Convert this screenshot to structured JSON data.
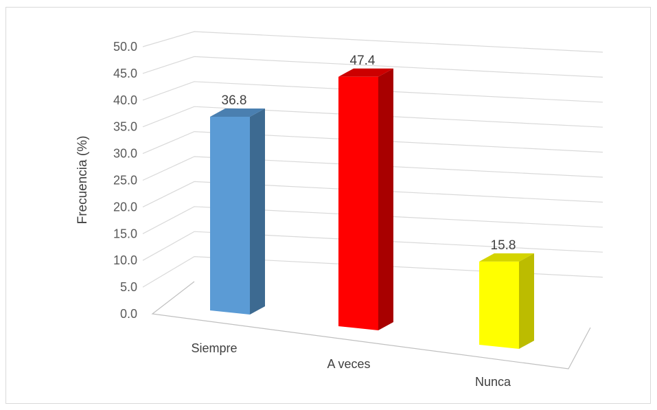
{
  "chart_data": {
    "type": "bar",
    "style": "3d-column",
    "categories": [
      "Siempre",
      "A veces",
      "Nunca"
    ],
    "series": [
      {
        "values": [
          36.8,
          47.4,
          15.8
        ]
      }
    ],
    "bar_colors": [
      "#5b9bd5",
      "#ff0000",
      "#ffff00"
    ],
    "bar_side_colors": [
      "#3d6a91",
      "#a80000",
      "#bcbc00"
    ],
    "bar_top_colors": [
      "#4a7fb0",
      "#cc0000",
      "#d4d400"
    ],
    "data_labels": [
      "36.8",
      "47.4",
      "15.8"
    ],
    "y_ticks": [
      "0.0",
      "5.0",
      "10.0",
      "15.0",
      "20.0",
      "25.0",
      "30.0",
      "35.0",
      "40.0",
      "45.0",
      "50.0"
    ],
    "title": "",
    "xlabel": "",
    "ylabel": "Frecuencia (%)",
    "ylim": [
      0,
      50
    ],
    "grid": true,
    "legend": "none"
  }
}
